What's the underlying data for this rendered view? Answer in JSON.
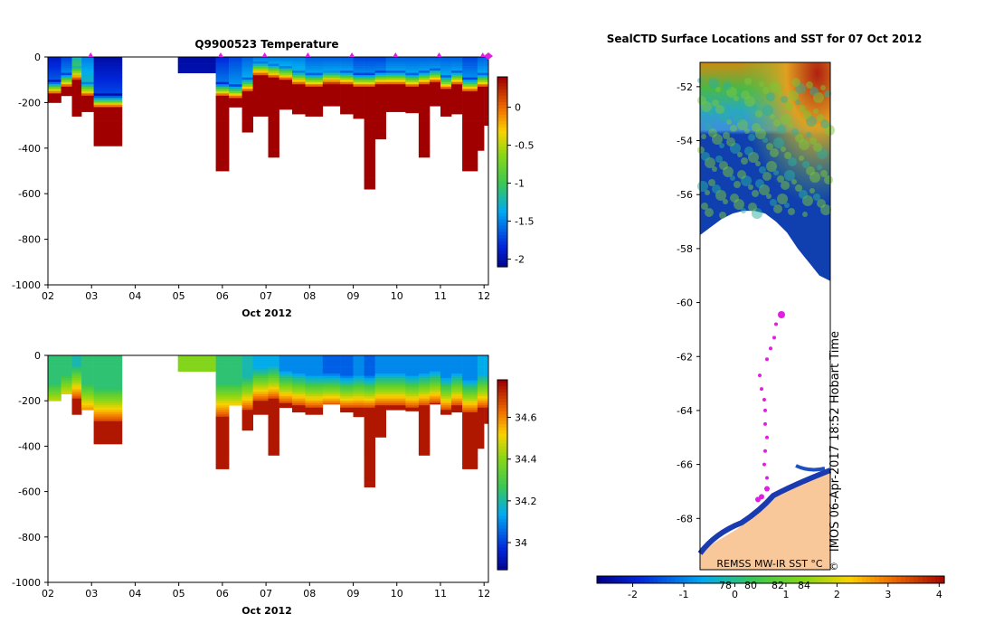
{
  "chart_data": [
    {
      "type": "heatmap",
      "title": "Q9900523  Temperature",
      "xlabel": "Oct 2012",
      "ylabel": "",
      "x_ticks": [
        "02",
        "03",
        "04",
        "05",
        "06",
        "07",
        "08",
        "09",
        "10",
        "11",
        "12"
      ],
      "x_range_day": [
        2,
        12.1
      ],
      "y_ticks": [
        0,
        -200,
        -400,
        -600,
        -800,
        -1000
      ],
      "ylim": [
        -1000,
        0
      ],
      "colorbar_ticks": [
        0,
        -0.5,
        -1,
        -1.5,
        -2
      ],
      "colorbar_range": [
        -2.1,
        0.4
      ],
      "surface_markers_day": [
        2.98,
        5.96,
        6.97,
        7.96,
        8.97,
        9.97,
        10.97,
        11.97
      ],
      "profiles": [
        {
          "x0": 2.0,
          "x1": 2.3,
          "max_depth": 200,
          "thermocline": 140,
          "surface": -1.9
        },
        {
          "x0": 2.3,
          "x1": 2.55,
          "max_depth": 170,
          "thermocline": 110,
          "surface": -1.7
        },
        {
          "x0": 2.55,
          "x1": 2.77,
          "max_depth": 260,
          "thermocline": 80,
          "surface": -1.2
        },
        {
          "x0": 2.77,
          "x1": 3.05,
          "max_depth": 240,
          "thermocline": 150,
          "surface": -1.5
        },
        {
          "x0": 3.05,
          "x1": 3.7,
          "max_depth": 390,
          "thermocline": 200,
          "surface": -2.0
        },
        {
          "x0": 4.98,
          "x1": 5.85,
          "max_depth": 70,
          "thermocline": 999,
          "surface": -2.0
        },
        {
          "x0": 5.85,
          "x1": 6.15,
          "max_depth": 500,
          "thermocline": 150,
          "surface": -1.8
        },
        {
          "x0": 6.15,
          "x1": 6.45,
          "max_depth": 220,
          "thermocline": 160,
          "surface": -1.7
        },
        {
          "x0": 6.45,
          "x1": 6.7,
          "max_depth": 330,
          "thermocline": 130,
          "surface": -1.6
        },
        {
          "x0": 6.7,
          "x1": 7.05,
          "max_depth": 260,
          "thermocline": 60,
          "surface": -1.5
        },
        {
          "x0": 7.05,
          "x1": 7.3,
          "max_depth": 440,
          "thermocline": 70,
          "surface": -1.5
        },
        {
          "x0": 7.3,
          "x1": 7.6,
          "max_depth": 230,
          "thermocline": 80,
          "surface": -1.5
        },
        {
          "x0": 7.6,
          "x1": 7.9,
          "max_depth": 250,
          "thermocline": 100,
          "surface": -1.5
        },
        {
          "x0": 7.9,
          "x1": 8.3,
          "max_depth": 260,
          "thermocline": 110,
          "surface": -1.6
        },
        {
          "x0": 8.3,
          "x1": 8.7,
          "max_depth": 215,
          "thermocline": 95,
          "surface": -1.6
        },
        {
          "x0": 8.7,
          "x1": 9.0,
          "max_depth": 250,
          "thermocline": 100,
          "surface": -1.6
        },
        {
          "x0": 9.0,
          "x1": 9.25,
          "max_depth": 270,
          "thermocline": 110,
          "surface": -1.7
        },
        {
          "x0": 9.25,
          "x1": 9.5,
          "max_depth": 580,
          "thermocline": 110,
          "surface": -1.7
        },
        {
          "x0": 9.5,
          "x1": 9.75,
          "max_depth": 360,
          "thermocline": 100,
          "surface": -1.7
        },
        {
          "x0": 9.75,
          "x1": 10.2,
          "max_depth": 240,
          "thermocline": 100,
          "surface": -1.6
        },
        {
          "x0": 10.2,
          "x1": 10.5,
          "max_depth": 245,
          "thermocline": 110,
          "surface": -1.6
        },
        {
          "x0": 10.5,
          "x1": 10.75,
          "max_depth": 440,
          "thermocline": 100,
          "surface": -1.6
        },
        {
          "x0": 10.75,
          "x1": 11.0,
          "max_depth": 215,
          "thermocline": 90,
          "surface": -1.6
        },
        {
          "x0": 11.0,
          "x1": 11.25,
          "max_depth": 260,
          "thermocline": 120,
          "surface": -1.6
        },
        {
          "x0": 11.25,
          "x1": 11.5,
          "max_depth": 250,
          "thermocline": 100,
          "surface": -1.6
        },
        {
          "x0": 11.5,
          "x1": 11.85,
          "max_depth": 500,
          "thermocline": 130,
          "surface": -1.7
        },
        {
          "x0": 11.85,
          "x1": 12.0,
          "max_depth": 410,
          "thermocline": 110,
          "surface": -1.6
        },
        {
          "x0": 12.0,
          "x1": 12.1,
          "max_depth": 300,
          "thermocline": 110,
          "surface": -1.6
        }
      ]
    },
    {
      "type": "heatmap",
      "title": "",
      "xlabel": "Oct 2012",
      "ylabel": "",
      "x_ticks": [
        "02",
        "03",
        "04",
        "05",
        "06",
        "07",
        "08",
        "09",
        "10",
        "11",
        "12"
      ],
      "x_range_day": [
        2,
        12.1
      ],
      "y_ticks": [
        0,
        -200,
        -400,
        -600,
        -800,
        -1000
      ],
      "ylim": [
        -1000,
        0
      ],
      "colorbar_ticks": [
        34.6,
        34.4,
        34.2,
        34
      ],
      "colorbar_range": [
        33.87,
        34.78
      ],
      "profiles": [
        {
          "x0": 2.0,
          "x1": 2.3,
          "max_depth": 200,
          "halocline": 150,
          "surface": 34.25
        },
        {
          "x0": 2.3,
          "x1": 2.55,
          "max_depth": 170,
          "halocline": 110,
          "surface": 34.25
        },
        {
          "x0": 2.55,
          "x1": 2.77,
          "max_depth": 260,
          "halocline": 70,
          "surface": 34.2
        },
        {
          "x0": 2.77,
          "x1": 3.05,
          "max_depth": 240,
          "halocline": 150,
          "surface": 34.25
        },
        {
          "x0": 3.05,
          "x1": 3.7,
          "max_depth": 390,
          "halocline": 170,
          "surface": 34.25
        },
        {
          "x0": 4.98,
          "x1": 5.85,
          "max_depth": 70,
          "halocline": 999,
          "surface": 34.4
        },
        {
          "x0": 5.85,
          "x1": 6.15,
          "max_depth": 500,
          "halocline": 150,
          "surface": 34.25
        },
        {
          "x0": 6.15,
          "x1": 6.45,
          "max_depth": 220,
          "halocline": 150,
          "surface": 34.25
        },
        {
          "x0": 6.45,
          "x1": 6.7,
          "max_depth": 330,
          "halocline": 120,
          "surface": 34.2
        },
        {
          "x0": 6.7,
          "x1": 7.05,
          "max_depth": 260,
          "halocline": 80,
          "surface": 34.15
        },
        {
          "x0": 7.05,
          "x1": 7.3,
          "max_depth": 440,
          "halocline": 70,
          "surface": 34.15
        },
        {
          "x0": 7.3,
          "x1": 7.6,
          "max_depth": 230,
          "halocline": 90,
          "surface": 34.1
        },
        {
          "x0": 7.6,
          "x1": 7.9,
          "max_depth": 250,
          "halocline": 100,
          "surface": 34.1
        },
        {
          "x0": 7.9,
          "x1": 8.3,
          "max_depth": 260,
          "halocline": 110,
          "surface": 34.1
        },
        {
          "x0": 8.3,
          "x1": 8.7,
          "max_depth": 215,
          "halocline": 100,
          "surface": 34.05
        },
        {
          "x0": 8.7,
          "x1": 9.0,
          "max_depth": 250,
          "halocline": 110,
          "surface": 34.05
        },
        {
          "x0": 9.0,
          "x1": 9.25,
          "max_depth": 270,
          "halocline": 110,
          "surface": 34.1
        },
        {
          "x0": 9.25,
          "x1": 9.5,
          "max_depth": 580,
          "halocline": 110,
          "surface": 34.05
        },
        {
          "x0": 9.5,
          "x1": 9.75,
          "max_depth": 360,
          "halocline": 100,
          "surface": 34.1
        },
        {
          "x0": 9.75,
          "x1": 10.2,
          "max_depth": 240,
          "halocline": 100,
          "surface": 34.1
        },
        {
          "x0": 10.2,
          "x1": 10.5,
          "max_depth": 245,
          "halocline": 110,
          "surface": 34.1
        },
        {
          "x0": 10.5,
          "x1": 10.75,
          "max_depth": 440,
          "halocline": 100,
          "surface": 34.1
        },
        {
          "x0": 10.75,
          "x1": 11.0,
          "max_depth": 215,
          "halocline": 90,
          "surface": 34.1
        },
        {
          "x0": 11.0,
          "x1": 11.25,
          "max_depth": 260,
          "halocline": 120,
          "surface": 34.1
        },
        {
          "x0": 11.25,
          "x1": 11.5,
          "max_depth": 250,
          "halocline": 100,
          "surface": 34.1
        },
        {
          "x0": 11.5,
          "x1": 11.85,
          "max_depth": 500,
          "halocline": 130,
          "surface": 34.1
        },
        {
          "x0": 11.85,
          "x1": 12.0,
          "max_depth": 410,
          "halocline": 110,
          "surface": 34.15
        },
        {
          "x0": 12.0,
          "x1": 12.1,
          "max_depth": 300,
          "halocline": 110,
          "surface": 34.15
        }
      ]
    },
    {
      "type": "heatmap",
      "title": "SealCTD Surface Locations and SST for 07 Oct 2012",
      "xlabel": "",
      "ylabel": "",
      "y_ticks": [
        "-52",
        "-54",
        "-56",
        "-58",
        "-60",
        "-62",
        "-64",
        "-66",
        "-68"
      ],
      "ylim": [
        -69.9,
        -51.1
      ],
      "colorbar_ticks": [
        "-2",
        "-1",
        "0",
        "1",
        "2",
        "3",
        "4"
      ],
      "colorbar_range": [
        -2.7,
        4.1
      ],
      "overlay_ticks": [
        "78",
        "80",
        "82",
        "84"
      ],
      "caption": "REMSS MW-IR SST °C",
      "imos_label": "IMOS 06-Apr-2017 18:52 Hobart Time",
      "copyright_symbol": "©",
      "seal_track_lat": [
        -60.45,
        -60.8,
        -61.3,
        -61.7,
        -62.1,
        -62.7,
        -63.2,
        -63.6,
        -64.0,
        -64.5,
        -65.0,
        -65.5,
        -66.0,
        -66.5,
        -66.9,
        -67.2,
        -67.3
      ],
      "ice_edge_lat": [
        -57.5,
        -57.2,
        -56.9,
        -56.7,
        -56.6,
        -56.6,
        -56.7,
        -57.0,
        -57.4,
        -58.0,
        -58.5,
        -59.0,
        -59.2
      ]
    }
  ]
}
